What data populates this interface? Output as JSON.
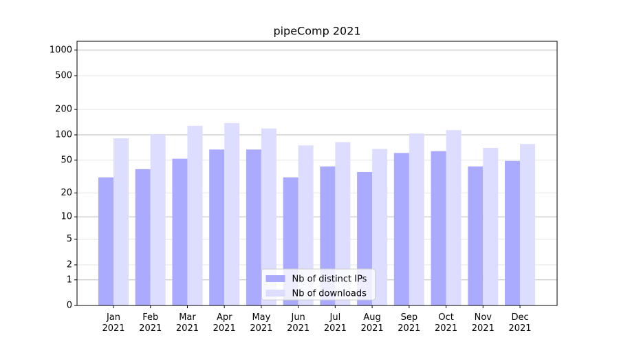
{
  "chart_data": {
    "type": "bar",
    "title": "pipeComp 2021",
    "categories": [
      "Jan\n2021",
      "Feb\n2021",
      "Mar\n2021",
      "Apr\n2021",
      "May\n2021",
      "Jun\n2021",
      "Jul\n2021",
      "Aug\n2021",
      "Sep\n2021",
      "Oct\n2021",
      "Nov\n2021",
      "Dec\n2021"
    ],
    "series": [
      {
        "name": "Nb of distinct IPs",
        "color": "#aaaaff",
        "values": [
          31,
          39,
          52,
          67,
          67,
          31,
          42,
          36,
          61,
          64,
          42,
          49
        ]
      },
      {
        "name": "Nb of downloads",
        "color": "#ddddff",
        "values": [
          91,
          102,
          128,
          138,
          119,
          75,
          82,
          68,
          104,
          114,
          70,
          78
        ]
      }
    ],
    "y_scale": "log1p",
    "ylim": [
      0,
      1270
    ],
    "yticks": [
      0,
      1,
      2,
      5,
      10,
      20,
      50,
      100,
      200,
      500,
      1000
    ],
    "grid": true,
    "legend": "lower center"
  }
}
